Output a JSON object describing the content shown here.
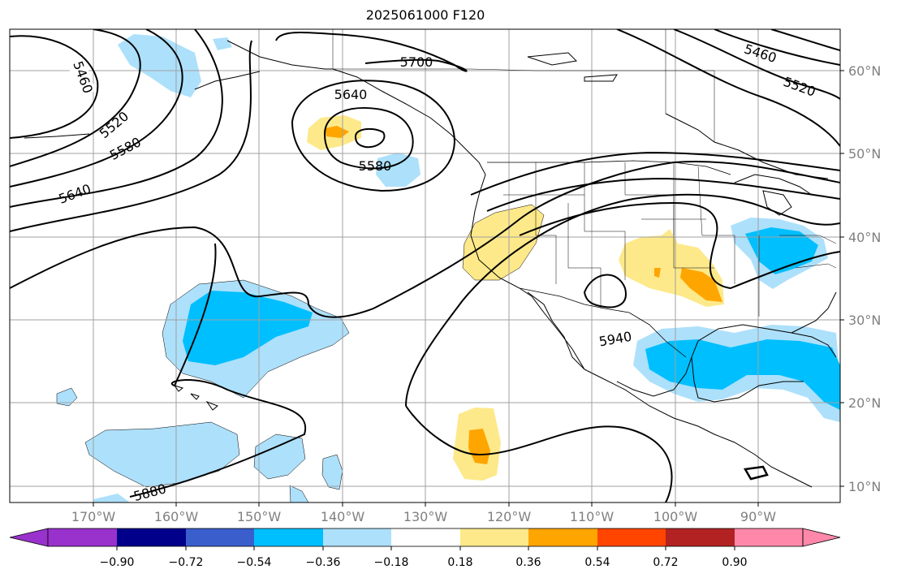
{
  "title": "2025061000 F120",
  "map": {
    "region": "North Pacific and North America",
    "lon_ticks": [
      "170°W",
      "160°W",
      "150°W",
      "140°W",
      "130°W",
      "120°W",
      "110°W",
      "100°W",
      "90°W"
    ],
    "lat_ticks": [
      "60°N",
      "50°N",
      "40°N",
      "30°N",
      "20°N",
      "10°N"
    ],
    "contour_labels": [
      "5460",
      "5520",
      "5580",
      "5640",
      "5640",
      "5580",
      "5700",
      "5460",
      "5520",
      "5940",
      "5880"
    ],
    "colors": {
      "light_blue": "#ade0fb",
      "blue": "#00bfff",
      "light_yellow": "#fde98a",
      "orange": "#ffa500",
      "grid": "#a0a0a0",
      "contour": "#000000"
    }
  },
  "colorbar": {
    "tick_labels": [
      "−0.90",
      "−0.72",
      "−0.54",
      "−0.36",
      "−0.18",
      "0.18",
      "0.36",
      "0.54",
      "0.72",
      "0.90"
    ],
    "colors": [
      "#9932cc",
      "#00008b",
      "#3a5fcd",
      "#00bfff",
      "#ade0fb",
      "#ffffff",
      "#fde98a",
      "#ffa500",
      "#ff4500",
      "#b22222",
      "#ff88aa"
    ]
  }
}
